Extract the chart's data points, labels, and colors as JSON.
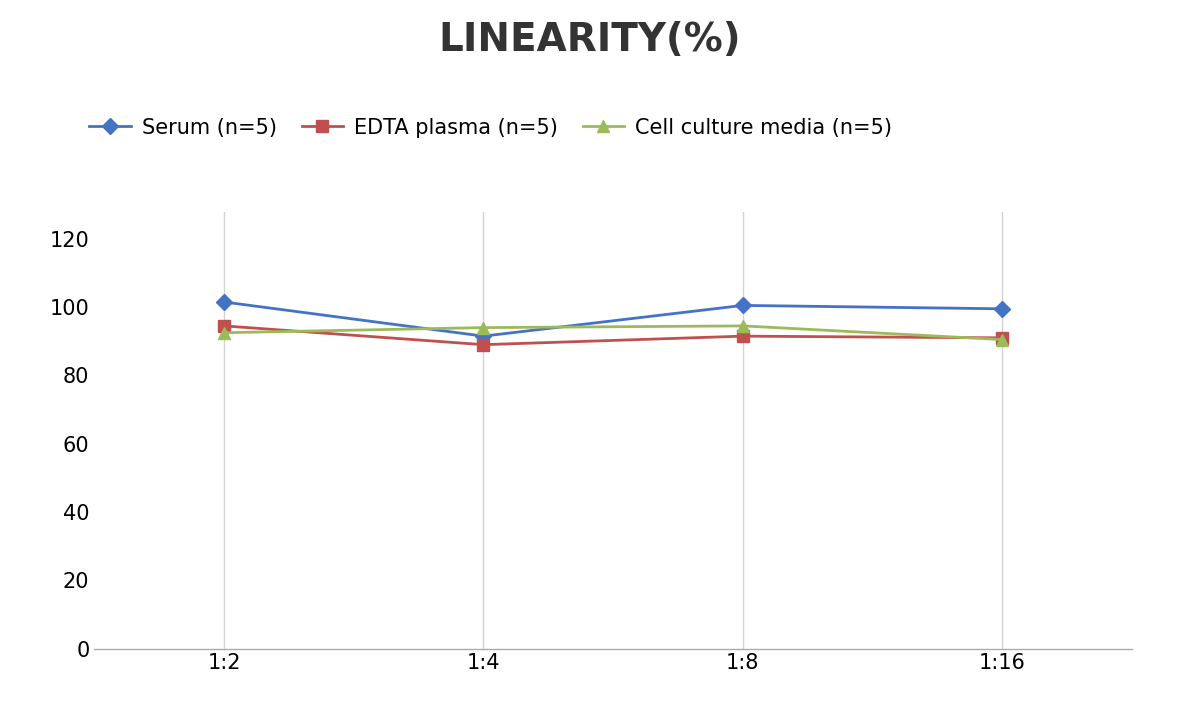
{
  "title": "LINEARITY(%)",
  "x_labels": [
    "1:2",
    "1:4",
    "1:8",
    "1:16"
  ],
  "x_positions": [
    0,
    1,
    2,
    3
  ],
  "series": [
    {
      "label": "Serum (n=5)",
      "values": [
        101.5,
        91.5,
        100.5,
        99.5
      ],
      "color": "#4472C4",
      "marker": "D",
      "markersize": 8,
      "linewidth": 2
    },
    {
      "label": "EDTA plasma (n=5)",
      "values": [
        94.5,
        89.0,
        91.5,
        91.0
      ],
      "color": "#C0504D",
      "marker": "s",
      "markersize": 8,
      "linewidth": 2
    },
    {
      "label": "Cell culture media (n=5)",
      "values": [
        92.5,
        94.0,
        94.5,
        90.5
      ],
      "color": "#9BBB59",
      "marker": "^",
      "markersize": 9,
      "linewidth": 2
    }
  ],
  "ylim": [
    0,
    128
  ],
  "yticks": [
    0,
    20,
    40,
    60,
    80,
    100,
    120
  ],
  "background_color": "#ffffff",
  "grid_color": "#d3d3d3",
  "title_fontsize": 28,
  "tick_fontsize": 15,
  "legend_fontsize": 15
}
